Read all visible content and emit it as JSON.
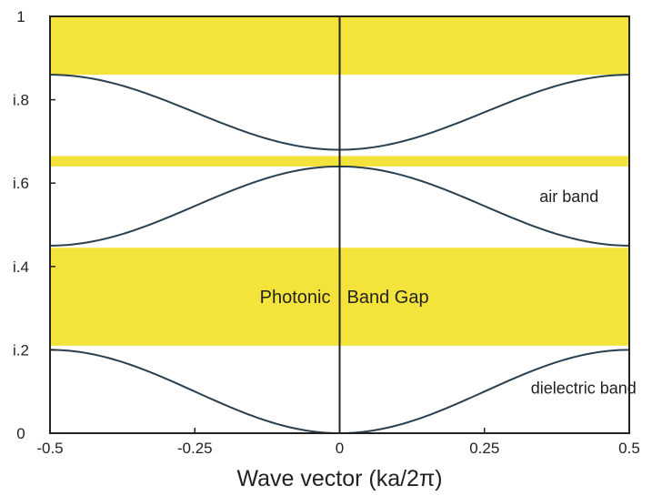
{
  "chart_data": {
    "type": "line",
    "xlabel": "Wave vector (ka/2π)",
    "ylabel": "",
    "xlim": [
      -0.5,
      0.5
    ],
    "ylim": [
      0,
      1
    ],
    "x_ticks": [
      -0.5,
      -0.25,
      0,
      0.25,
      0.5
    ],
    "x_tick_labels": [
      "-0.5",
      "-0.25",
      "0",
      "0.25",
      "0.5"
    ],
    "y_ticks": [
      0,
      0.2,
      0.4,
      0.6,
      0.8,
      1
    ],
    "y_tick_labels": [
      "0",
      "i.2",
      "i.4",
      "i.6",
      "i.8",
      "1"
    ],
    "grid": false,
    "band_gaps": [
      {
        "ymin": 0.21,
        "ymax": 0.445,
        "label": "Photonic Band Gap"
      },
      {
        "ymin": 0.64,
        "ymax": 0.665,
        "label": ""
      },
      {
        "ymin": 0.86,
        "ymax": 1.0,
        "label": ""
      }
    ],
    "bands": [
      {
        "name": "dielectric band",
        "edge": 0.2,
        "center": 0.0,
        "shape": "cos"
      },
      {
        "name": "air band",
        "edge": 0.45,
        "center": 0.64,
        "shape": "cos"
      },
      {
        "name": "",
        "edge": 0.86,
        "center": 0.68,
        "shape": "cos"
      }
    ],
    "annotations": [
      {
        "text": "air band",
        "x": 0.345,
        "y": 0.555
      },
      {
        "text": "dielectric band",
        "x": 0.33,
        "y": 0.095
      }
    ],
    "colors": {
      "gap": "#f4e33a",
      "line": "#2a3f4f",
      "axis": "#222222"
    }
  }
}
